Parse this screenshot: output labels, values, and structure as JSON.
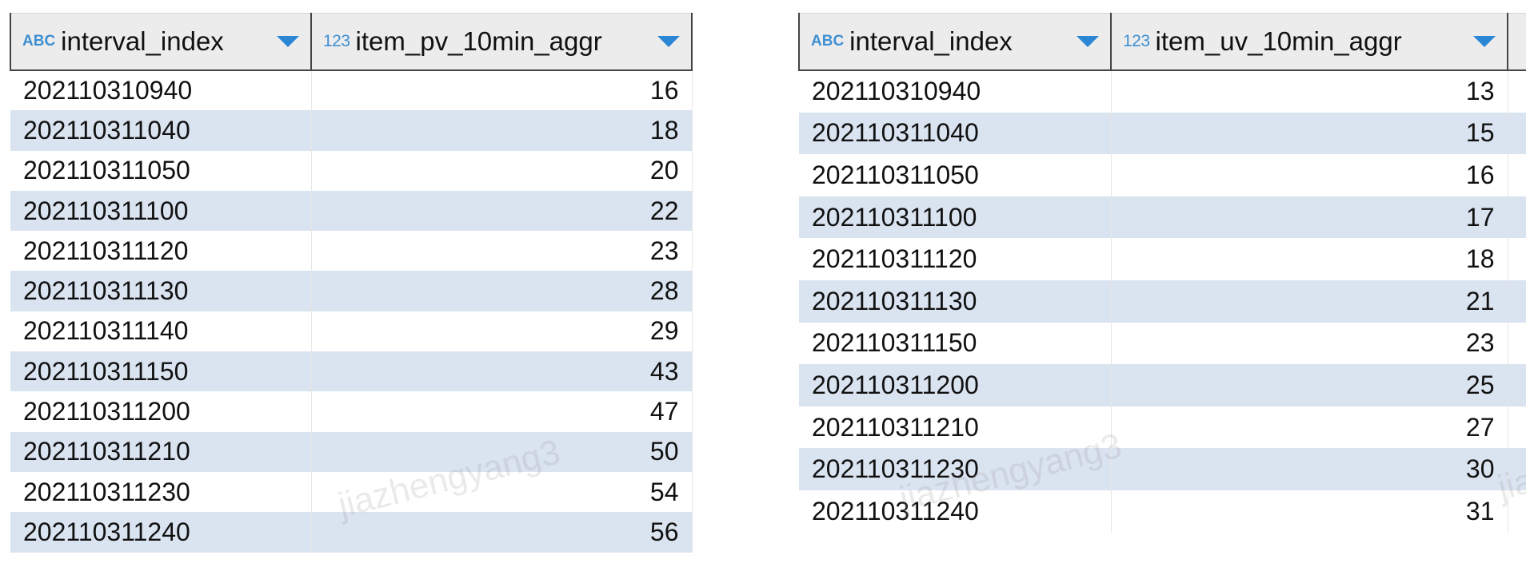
{
  "left_table": {
    "columns": [
      {
        "type_icon": "ABC",
        "name": "interval_index"
      },
      {
        "type_icon": "123",
        "name": "item_pv_10min_aggr"
      }
    ],
    "rows": [
      [
        "202110310940",
        "16"
      ],
      [
        "202110311040",
        "18"
      ],
      [
        "202110311050",
        "20"
      ],
      [
        "202110311100",
        "22"
      ],
      [
        "202110311120",
        "23"
      ],
      [
        "202110311130",
        "28"
      ],
      [
        "202110311140",
        "29"
      ],
      [
        "202110311150",
        "43"
      ],
      [
        "202110311200",
        "47"
      ],
      [
        "202110311210",
        "50"
      ],
      [
        "202110311230",
        "54"
      ],
      [
        "202110311240",
        "56"
      ]
    ]
  },
  "right_table": {
    "columns": [
      {
        "type_icon": "ABC",
        "name": "interval_index"
      },
      {
        "type_icon": "123",
        "name": "item_uv_10min_aggr"
      }
    ],
    "rows": [
      [
        "202110310940",
        "13"
      ],
      [
        "202110311040",
        "15"
      ],
      [
        "202110311050",
        "16"
      ],
      [
        "202110311100",
        "17"
      ],
      [
        "202110311120",
        "18"
      ],
      [
        "202110311130",
        "21"
      ],
      [
        "202110311150",
        "23"
      ],
      [
        "202110311200",
        "25"
      ],
      [
        "202110311210",
        "27"
      ],
      [
        "202110311230",
        "30"
      ],
      [
        "202110311240",
        "31"
      ]
    ]
  },
  "watermark": {
    "text_left": "jiazhengyang3",
    "text_right": "jiazhengyang3",
    "text_edge": "jiazh"
  },
  "colors": {
    "type_icon": "#3f8fd2",
    "sort_arrow": "#2b86d6",
    "stripe": "#dae3f0",
    "header_bg": "#ececec"
  },
  "icons": {
    "type_text": "abc-type-icon",
    "type_number": "number-type-icon",
    "sort": "sort-dropdown-icon"
  }
}
